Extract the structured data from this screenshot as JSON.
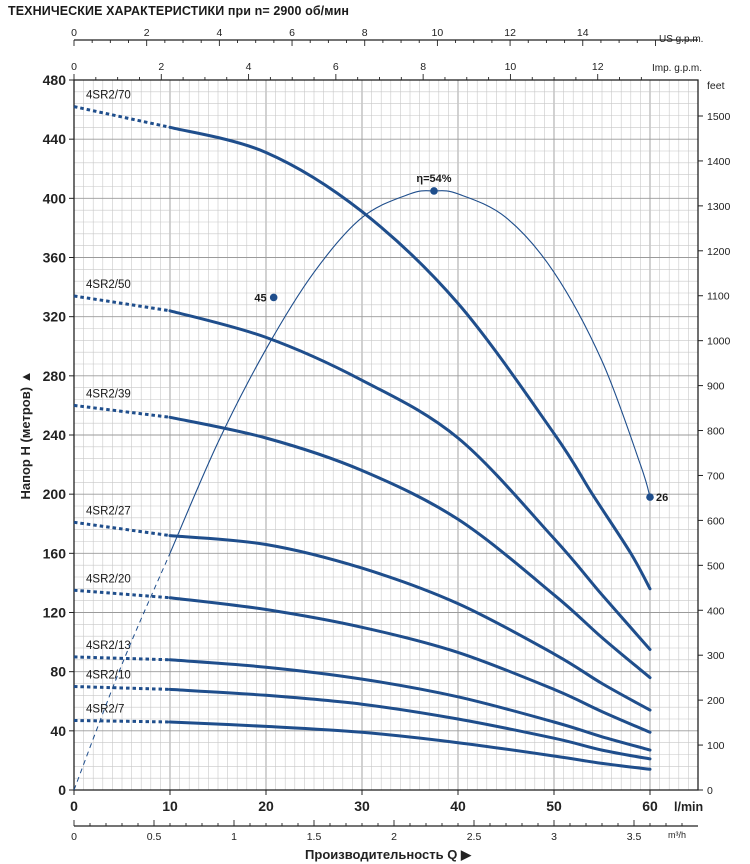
{
  "title": "ТЕХНИЧЕСКИЕ ХАРАКТЕРИСТИКИ при n= 2900 об/мин",
  "chart_data": {
    "type": "line",
    "title": "ТЕХНИЧЕСКИЕ ХАРАКТЕРИСТИКИ при n= 2900 об/мин",
    "xlabel": "Производительность Q",
    "ylabel": "Напор Н  (метров)",
    "x_unit_label": "l/min",
    "secondary_x_unit_label": "m³/h",
    "top_axis_us_label": "US g.p.m.",
    "top_axis_imp_label": "Imp. g.p.m.",
    "right_axis_label": "feet",
    "xlim": [
      0,
      65
    ],
    "ylim": [
      0,
      480
    ],
    "grid": true,
    "x_ticks": [
      "0",
      "10",
      "20",
      "30",
      "40",
      "50",
      "60"
    ],
    "y_ticks": [
      "0",
      "40",
      "80",
      "120",
      "160",
      "200",
      "240",
      "280",
      "320",
      "360",
      "400",
      "440",
      "480"
    ],
    "m3h_ticks": [
      "0",
      "0.5",
      "1",
      "1.5",
      "2",
      "2.5",
      "3",
      "3.5"
    ],
    "us_gpm_ticks": [
      "0",
      "2",
      "4",
      "6",
      "8",
      "10",
      "12",
      "14"
    ],
    "imp_gpm_ticks": [
      "0",
      "2",
      "4",
      "6",
      "8",
      "10",
      "12"
    ],
    "feet_ticks": [
      "0",
      "100",
      "200",
      "300",
      "400",
      "500",
      "600",
      "700",
      "800",
      "900",
      "1000",
      "1100",
      "1200",
      "1300",
      "1400",
      "1500"
    ],
    "series": [
      {
        "name": "4SR2/70",
        "dashed": [
          [
            0,
            462
          ],
          [
            10,
            448
          ]
        ],
        "solid": [
          [
            10,
            448
          ],
          [
            20,
            431
          ],
          [
            30,
            391
          ],
          [
            40,
            329
          ],
          [
            50,
            241
          ],
          [
            54,
            200
          ],
          [
            58,
            160
          ],
          [
            60,
            136
          ]
        ]
      },
      {
        "name": "4SR2/50",
        "dashed": [
          [
            0,
            334
          ],
          [
            10,
            324
          ]
        ],
        "solid": [
          [
            10,
            324
          ],
          [
            20,
            306
          ],
          [
            30,
            277
          ],
          [
            40,
            238
          ],
          [
            50,
            170
          ],
          [
            55,
            132
          ],
          [
            60,
            95
          ]
        ]
      },
      {
        "name": "4SR2/39",
        "dashed": [
          [
            0,
            260
          ],
          [
            10,
            252
          ]
        ],
        "solid": [
          [
            10,
            252
          ],
          [
            20,
            238
          ],
          [
            30,
            216
          ],
          [
            40,
            183
          ],
          [
            50,
            132
          ],
          [
            55,
            103
          ],
          [
            60,
            76
          ]
        ]
      },
      {
        "name": "4SR2/27",
        "dashed": [
          [
            0,
            181
          ],
          [
            10,
            172
          ]
        ],
        "solid": [
          [
            10,
            172
          ],
          [
            20,
            166
          ],
          [
            30,
            150
          ],
          [
            40,
            126
          ],
          [
            50,
            92
          ],
          [
            55,
            72
          ],
          [
            60,
            54
          ]
        ]
      },
      {
        "name": "4SR2/20",
        "dashed": [
          [
            0,
            135
          ],
          [
            10,
            130
          ]
        ],
        "solid": [
          [
            10,
            130
          ],
          [
            20,
            122
          ],
          [
            30,
            110
          ],
          [
            40,
            93
          ],
          [
            50,
            68
          ],
          [
            55,
            53
          ],
          [
            60,
            39
          ]
        ]
      },
      {
        "name": "4SR2/13",
        "dashed": [
          [
            0,
            90
          ],
          [
            10,
            88
          ]
        ],
        "solid": [
          [
            10,
            88
          ],
          [
            20,
            83
          ],
          [
            30,
            75
          ],
          [
            40,
            63
          ],
          [
            50,
            46
          ],
          [
            55,
            36
          ],
          [
            60,
            27
          ]
        ]
      },
      {
        "name": "4SR2/10",
        "dashed": [
          [
            0,
            70
          ],
          [
            10,
            68
          ]
        ],
        "solid": [
          [
            10,
            68
          ],
          [
            20,
            64
          ],
          [
            30,
            58
          ],
          [
            40,
            48
          ],
          [
            50,
            35
          ],
          [
            55,
            27
          ],
          [
            60,
            21
          ]
        ]
      },
      {
        "name": "4SR2/7",
        "dashed": [
          [
            0,
            47
          ],
          [
            10,
            46
          ]
        ],
        "solid": [
          [
            10,
            46
          ],
          [
            20,
            43
          ],
          [
            30,
            39
          ],
          [
            40,
            32
          ],
          [
            50,
            23
          ],
          [
            55,
            18
          ],
          [
            60,
            14
          ]
        ]
      }
    ],
    "efficiency": {
      "dashed": [
        [
          0,
          0
        ],
        [
          5,
          85
        ],
        [
          10,
          160
        ]
      ],
      "solid": [
        [
          10,
          160
        ],
        [
          15,
          235
        ],
        [
          20,
          298
        ],
        [
          25,
          350
        ],
        [
          30,
          387
        ],
        [
          35,
          403
        ],
        [
          37.5,
          405
        ],
        [
          40,
          403
        ],
        [
          45,
          387
        ],
        [
          50,
          350
        ],
        [
          55,
          290
        ],
        [
          59,
          220
        ],
        [
          60,
          198
        ]
      ],
      "points": [
        {
          "label": "45",
          "x": 20.8,
          "y": 333
        },
        {
          "label": "η=54%",
          "x": 37.5,
          "y": 405
        },
        {
          "label": "26",
          "x": 60,
          "y": 198
        }
      ]
    }
  },
  "colors": {
    "curve": "#1f4e8c",
    "grid_fine": "#c8c8c8",
    "grid_major": "#9a9a9a",
    "axis": "#222222"
  }
}
